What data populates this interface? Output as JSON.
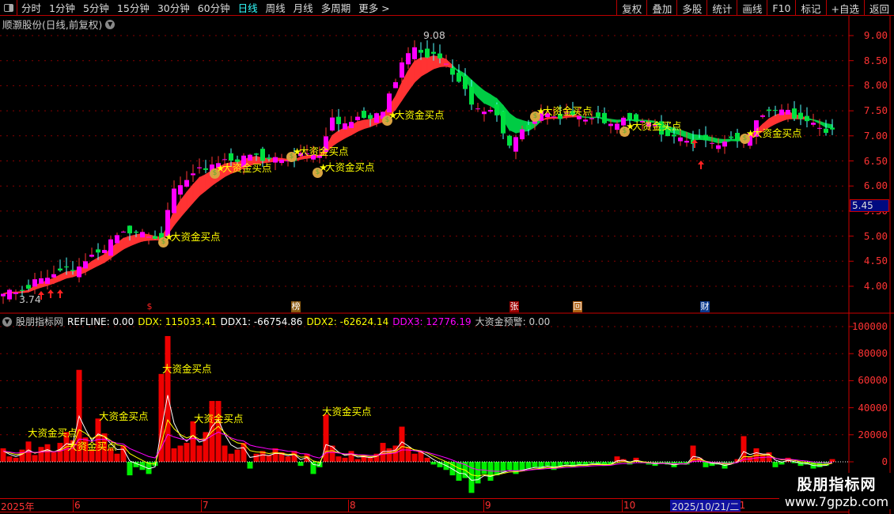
{
  "toolbar": {
    "periods": [
      "分时",
      "1分钟",
      "5分钟",
      "15分钟",
      "30分钟",
      "60分钟",
      "日线",
      "周线",
      "月线",
      "多周期",
      "更多 >"
    ],
    "active_period": "日线",
    "buttons": [
      "复权",
      "叠加",
      "多股",
      "统计",
      "画线",
      "F10",
      "标记",
      "+自选",
      "返回"
    ]
  },
  "title": "顺灏股份(日线,前复权)",
  "price_axis": {
    "ticks": [
      "9.00",
      "8.50",
      "8.00",
      "7.50",
      "7.00",
      "6.50",
      "6.00",
      "5.50",
      "5.00",
      "4.50",
      "4.00"
    ],
    "current_price": "5.45"
  },
  "annotations": {
    "high": "9.08",
    "low": "3.74",
    "buy_signal": "大资金买点"
  },
  "event_markers": [
    "$",
    "榜",
    "张",
    "回",
    "财"
  ],
  "indicator": {
    "name": "股朋指标网",
    "refline": "REFLINE: 0.00",
    "ddx": "DDX: 115033.41",
    "ddx1": "DDX1: -66754.86",
    "ddx2": "DDX2: -62624.14",
    "ddx3": "DDX3: 12776.19",
    "alert": "大资金预警: 0.00",
    "axis_ticks": [
      "100000",
      "80000",
      "60000",
      "40000",
      "20000",
      "0"
    ]
  },
  "date_axis": {
    "labels": [
      "2025年",
      "6",
      "7",
      "8",
      "9",
      "10",
      "11"
    ],
    "cursor_date": "2025/10/21/二"
  },
  "watermark": {
    "name": "股朋指标网",
    "url": "www.7gpzb.com"
  },
  "colors": {
    "up": "#ff00ff",
    "down": "#00e040",
    "band_up": "#ff3333",
    "band_down": "#00cc44",
    "axis": "#ff3333",
    "ddx_pos": "#ee0000",
    "ddx_neg": "#00ee00",
    "ddx1": "#ffffff",
    "ddx2": "#ffff00",
    "ddx3": "#ff00ff",
    "buy_label": "#ffff00"
  },
  "chart_data": {
    "type": "candlestick",
    "ylim": [
      3.7,
      9.1
    ],
    "approx_close_path": [
      [
        0,
        3.85
      ],
      [
        10,
        4.3
      ],
      [
        20,
        5.1
      ],
      [
        25,
        5.0
      ],
      [
        27,
        5.9
      ],
      [
        33,
        6.5
      ],
      [
        40,
        6.55
      ],
      [
        50,
        6.6
      ],
      [
        52,
        7.3
      ],
      [
        60,
        7.4
      ],
      [
        63,
        8.5
      ],
      [
        65,
        8.8
      ],
      [
        70,
        8.4
      ],
      [
        74,
        7.7
      ],
      [
        78,
        7.4
      ],
      [
        80,
        6.75
      ],
      [
        83,
        7.2
      ],
      [
        85,
        7.5
      ],
      [
        90,
        7.35
      ],
      [
        100,
        7.3
      ],
      [
        105,
        7.05
      ],
      [
        112,
        6.8
      ],
      [
        117,
        7.0
      ],
      [
        121,
        7.5
      ],
      [
        126,
        7.4
      ],
      [
        131,
        7.05
      ]
    ],
    "ddx_bars": [
      10000,
      4000,
      3000,
      9000,
      15000,
      5000,
      11000,
      13000,
      7000,
      14000,
      22000,
      16000,
      68000,
      18000,
      9000,
      32000,
      21000,
      10000,
      6000,
      12000,
      -10000,
      -4000,
      -6000,
      -9000,
      -3000,
      65000,
      93000,
      10000,
      12000,
      14000,
      30000,
      12000,
      22000,
      45000,
      45000,
      12000,
      6000,
      9000,
      14000,
      -5000,
      6000,
      8000,
      5000,
      10000,
      7000,
      4000,
      8000,
      -3000,
      6000,
      -9000,
      -4000,
      35000,
      12000,
      4000,
      3000,
      8000,
      2000,
      5000,
      3000,
      6000,
      14000,
      10000,
      12000,
      26000,
      11000,
      6000,
      8000,
      3000,
      -2000,
      -4000,
      -6000,
      -10000,
      -14000,
      -12000,
      -23000,
      -16000,
      -9000,
      -14000,
      -10000,
      -8000,
      -6000,
      -9000,
      -7000,
      -5000,
      -4000,
      -5000,
      -3000,
      -6000,
      -3000,
      -2000,
      -4000,
      -2000,
      -3000,
      -1000,
      -2000,
      -3000,
      -2000,
      4000,
      2000,
      -2000,
      3000,
      -1000,
      -2000,
      -3000,
      -1000,
      -2000,
      -4000,
      -1000,
      -2000,
      12000,
      3000,
      -4000,
      -3000,
      -2000,
      -5000,
      -1000,
      2000,
      19000,
      4000,
      10000,
      6000,
      7000,
      -4000,
      -2000,
      3000,
      -1000,
      -3000,
      -2000,
      -5000,
      -4000,
      -3000,
      2000
    ]
  }
}
